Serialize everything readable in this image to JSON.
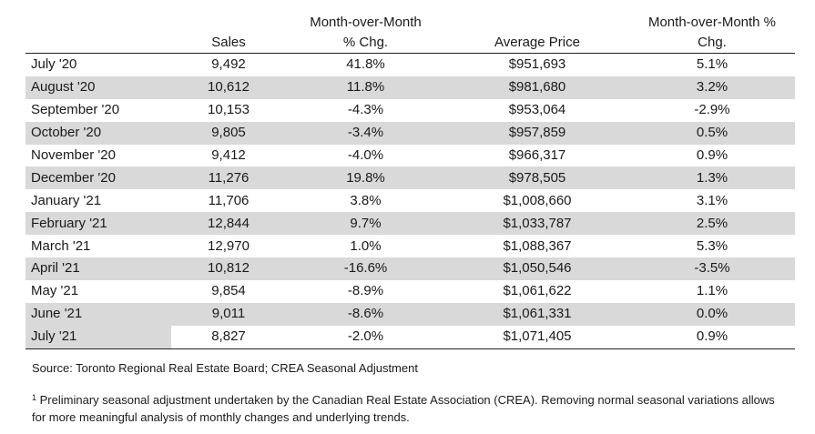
{
  "headers": {
    "month": "",
    "sales": "Sales",
    "mom_line1": "Month-over-Month",
    "mom_line2": "% Chg.",
    "avg_price": "Average Price",
    "price_mom_line1": "Month-over-Month %",
    "price_mom_line2": "Chg."
  },
  "rows": [
    {
      "month": "July '20",
      "sales": "9,492",
      "mom": "41.8%",
      "avg_price": "$951,693",
      "price_mom": "5.1%"
    },
    {
      "month": "August '20",
      "sales": "10,612",
      "mom": "11.8%",
      "avg_price": "$981,680",
      "price_mom": "3.2%"
    },
    {
      "month": "September '20",
      "sales": "10,153",
      "mom": "-4.3%",
      "avg_price": "$953,064",
      "price_mom": "-2.9%"
    },
    {
      "month": "October '20",
      "sales": "9,805",
      "mom": "-3.4%",
      "avg_price": "$957,859",
      "price_mom": "0.5%"
    },
    {
      "month": "November '20",
      "sales": "9,412",
      "mom": "-4.0%",
      "avg_price": "$966,317",
      "price_mom": "0.9%"
    },
    {
      "month": "December '20",
      "sales": "11,276",
      "mom": "19.8%",
      "avg_price": "$978,505",
      "price_mom": "1.3%"
    },
    {
      "month": "January '21",
      "sales": "11,706",
      "mom": "3.8%",
      "avg_price": "$1,008,660",
      "price_mom": "3.1%"
    },
    {
      "month": "February '21",
      "sales": "12,844",
      "mom": "9.7%",
      "avg_price": "$1,033,787",
      "price_mom": "2.5%"
    },
    {
      "month": "March '21",
      "sales": "12,970",
      "mom": "1.0%",
      "avg_price": "$1,088,367",
      "price_mom": "5.3%"
    },
    {
      "month": "April '21",
      "sales": "10,812",
      "mom": "-16.6%",
      "avg_price": "$1,050,546",
      "price_mom": "-3.5%"
    },
    {
      "month": "May '21",
      "sales": "9,854",
      "mom": "-8.9%",
      "avg_price": "$1,061,622",
      "price_mom": "1.1%"
    },
    {
      "month": "June '21",
      "sales": "9,011",
      "mom": "-8.6%",
      "avg_price": "$1,061,331",
      "price_mom": "0.0%"
    },
    {
      "month": "July '21",
      "sales": "8,827",
      "mom": "-2.0%",
      "avg_price": "$1,071,405",
      "price_mom": "0.9%"
    }
  ],
  "source": "Source: Toronto Regional Real Estate Board; CREA Seasonal Adjustment",
  "footnote": {
    "marker": "1",
    "text": "Preliminary seasonal adjustment undertaken by the Canadian Real Estate Association (CREA).  Removing normal seasonal variations allows for more meaningful analysis of monthly changes and underlying trends."
  }
}
